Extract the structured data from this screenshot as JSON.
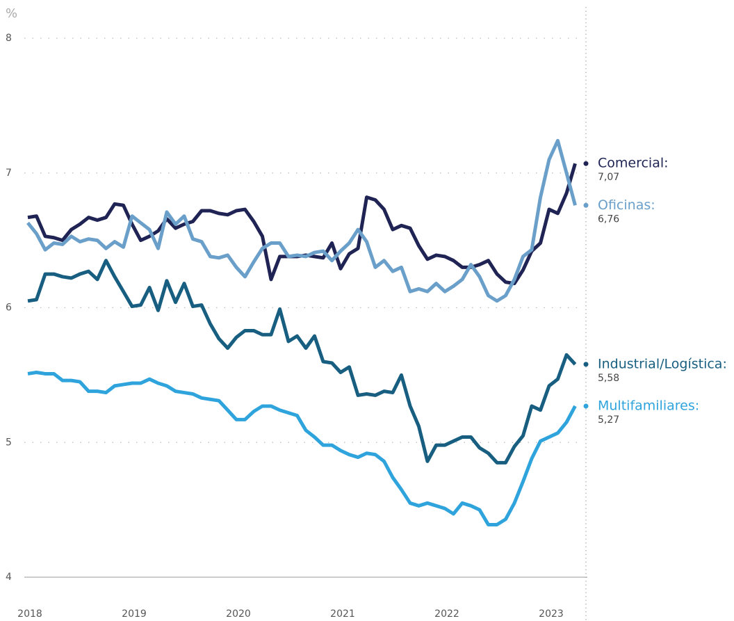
{
  "chart_data": {
    "type": "line",
    "y_label": "%",
    "x": [
      2018,
      2018.083,
      2018.167,
      2018.25,
      2018.333,
      2018.417,
      2018.5,
      2018.583,
      2018.667,
      2018.75,
      2018.833,
      2018.917,
      2019,
      2019.083,
      2019.167,
      2019.25,
      2019.333,
      2019.417,
      2019.5,
      2019.583,
      2019.667,
      2019.75,
      2019.833,
      2019.917,
      2020,
      2020.083,
      2020.167,
      2020.25,
      2020.333,
      2020.417,
      2020.5,
      2020.583,
      2020.667,
      2020.75,
      2020.833,
      2020.917,
      2021,
      2021.083,
      2021.167,
      2021.25,
      2021.333,
      2021.417,
      2021.5,
      2021.583,
      2021.667,
      2021.75,
      2021.833,
      2021.917,
      2022,
      2022.083,
      2022.167,
      2022.25,
      2022.333,
      2022.417,
      2022.5,
      2022.583,
      2022.667,
      2022.75,
      2022.833,
      2022.917,
      2023,
      2023.083,
      2023.167,
      2023.25
    ],
    "xlim": [
      2018,
      2023.3
    ],
    "xticks": [
      2018,
      2019,
      2020,
      2021,
      2022,
      2023
    ],
    "ylim": [
      4,
      8
    ],
    "yticks": [
      4,
      5,
      6,
      7,
      8
    ],
    "grid": true,
    "series": [
      {
        "name": "Comercial:",
        "color": "#1f2454",
        "values": [
          6.67,
          6.68,
          6.53,
          6.52,
          6.5,
          6.58,
          6.62,
          6.67,
          6.65,
          6.67,
          6.77,
          6.76,
          6.62,
          6.5,
          6.53,
          6.57,
          6.66,
          6.59,
          6.62,
          6.64,
          6.72,
          6.72,
          6.7,
          6.69,
          6.72,
          6.73,
          6.64,
          6.53,
          6.21,
          6.38,
          6.38,
          6.38,
          6.39,
          6.38,
          6.37,
          6.48,
          6.29,
          6.4,
          6.44,
          6.82,
          6.8,
          6.73,
          6.58,
          6.61,
          6.59,
          6.46,
          6.36,
          6.39,
          6.38,
          6.35,
          6.3,
          6.3,
          6.32,
          6.35,
          6.25,
          6.19,
          6.18,
          6.28,
          6.42,
          6.48,
          6.73,
          6.7,
          6.85,
          7.07
        ],
        "value_labels": [
          null,
          null,
          null,
          null,
          null,
          null,
          null,
          null,
          null,
          null,
          null,
          null,
          null,
          null,
          null,
          null,
          null,
          null,
          null,
          null,
          null,
          null,
          null,
          null,
          null,
          null,
          null,
          null,
          null,
          null,
          null,
          null,
          null,
          null,
          null,
          null,
          null,
          null,
          null,
          null,
          null,
          null,
          null,
          null,
          null,
          null,
          null,
          null,
          null,
          null,
          null,
          null,
          null,
          null,
          null,
          null,
          null,
          null,
          null,
          null,
          null,
          null,
          null,
          "7,07"
        ]
      },
      {
        "name": "Oficinas:",
        "color": "#6a9fca",
        "values": [
          6.63,
          6.55,
          6.43,
          6.48,
          6.47,
          6.53,
          6.49,
          6.51,
          6.5,
          6.44,
          6.49,
          6.45,
          6.68,
          6.63,
          6.58,
          6.44,
          6.71,
          6.62,
          6.68,
          6.51,
          6.49,
          6.38,
          6.37,
          6.39,
          6.3,
          6.23,
          6.34,
          6.44,
          6.48,
          6.48,
          6.38,
          6.39,
          6.38,
          6.41,
          6.42,
          6.35,
          6.42,
          6.48,
          6.58,
          6.49,
          6.3,
          6.35,
          6.27,
          6.3,
          6.12,
          6.14,
          6.12,
          6.18,
          6.12,
          6.16,
          6.21,
          6.32,
          6.23,
          6.09,
          6.05,
          6.09,
          6.21,
          6.38,
          6.43,
          6.82,
          7.1,
          7.24,
          7.0,
          6.76
        ],
        "value_labels": [
          null,
          null,
          null,
          null,
          null,
          null,
          null,
          null,
          null,
          null,
          null,
          null,
          null,
          null,
          null,
          null,
          null,
          null,
          null,
          null,
          null,
          null,
          null,
          null,
          null,
          null,
          null,
          null,
          null,
          null,
          null,
          null,
          null,
          null,
          null,
          null,
          null,
          null,
          null,
          null,
          null,
          null,
          null,
          null,
          null,
          null,
          null,
          null,
          null,
          null,
          null,
          null,
          null,
          null,
          null,
          null,
          null,
          null,
          null,
          null,
          null,
          null,
          null,
          "6,76"
        ]
      },
      {
        "name": "Industrial/Logística:",
        "color": "#175e80",
        "values": [
          6.05,
          6.06,
          6.25,
          6.25,
          6.23,
          6.22,
          6.25,
          6.27,
          6.21,
          6.35,
          6.23,
          6.12,
          6.01,
          6.02,
          6.15,
          5.98,
          6.2,
          6.04,
          6.18,
          6.01,
          6.02,
          5.88,
          5.77,
          5.7,
          5.78,
          5.83,
          5.83,
          5.8,
          5.8,
          5.99,
          5.75,
          5.79,
          5.7,
          5.79,
          5.6,
          5.59,
          5.52,
          5.56,
          5.35,
          5.36,
          5.35,
          5.38,
          5.37,
          5.5,
          5.27,
          5.12,
          4.86,
          4.98,
          4.98,
          5.01,
          5.04,
          5.04,
          4.96,
          4.92,
          4.85,
          4.85,
          4.97,
          5.05,
          5.27,
          5.24,
          5.42,
          5.47,
          5.65,
          5.58
        ],
        "value_labels": [
          null,
          null,
          null,
          null,
          null,
          null,
          null,
          null,
          null,
          null,
          null,
          null,
          null,
          null,
          null,
          null,
          null,
          null,
          null,
          null,
          null,
          null,
          null,
          null,
          null,
          null,
          null,
          null,
          null,
          null,
          null,
          null,
          null,
          null,
          null,
          null,
          null,
          null,
          null,
          null,
          null,
          null,
          null,
          null,
          null,
          null,
          null,
          null,
          null,
          null,
          null,
          null,
          null,
          null,
          null,
          null,
          null,
          null,
          null,
          null,
          null,
          null,
          null,
          "5,58"
        ]
      },
      {
        "name": "Multifamiliares:",
        "color": "#2ea3dc",
        "values": [
          5.51,
          5.52,
          5.51,
          5.51,
          5.46,
          5.46,
          5.45,
          5.38,
          5.38,
          5.37,
          5.42,
          5.43,
          5.44,
          5.44,
          5.47,
          5.44,
          5.42,
          5.38,
          5.37,
          5.36,
          5.33,
          5.32,
          5.31,
          5.24,
          5.17,
          5.17,
          5.23,
          5.27,
          5.27,
          5.24,
          5.22,
          5.2,
          5.09,
          5.04,
          4.98,
          4.98,
          4.94,
          4.91,
          4.89,
          4.92,
          4.91,
          4.86,
          4.74,
          4.65,
          4.55,
          4.53,
          4.55,
          4.53,
          4.51,
          4.47,
          4.55,
          4.53,
          4.5,
          4.39,
          4.39,
          4.43,
          4.55,
          4.71,
          4.88,
          5.01,
          5.04,
          5.07,
          5.15,
          5.27
        ],
        "value_labels": [
          null,
          null,
          null,
          null,
          null,
          null,
          null,
          null,
          null,
          null,
          null,
          null,
          null,
          null,
          null,
          null,
          null,
          null,
          null,
          null,
          null,
          null,
          null,
          null,
          null,
          null,
          null,
          null,
          null,
          null,
          null,
          null,
          null,
          null,
          null,
          null,
          null,
          null,
          null,
          null,
          null,
          null,
          null,
          null,
          null,
          null,
          null,
          null,
          null,
          null,
          null,
          null,
          null,
          null,
          null,
          null,
          null,
          null,
          null,
          null,
          null,
          null,
          null,
          "5,27"
        ]
      }
    ]
  }
}
